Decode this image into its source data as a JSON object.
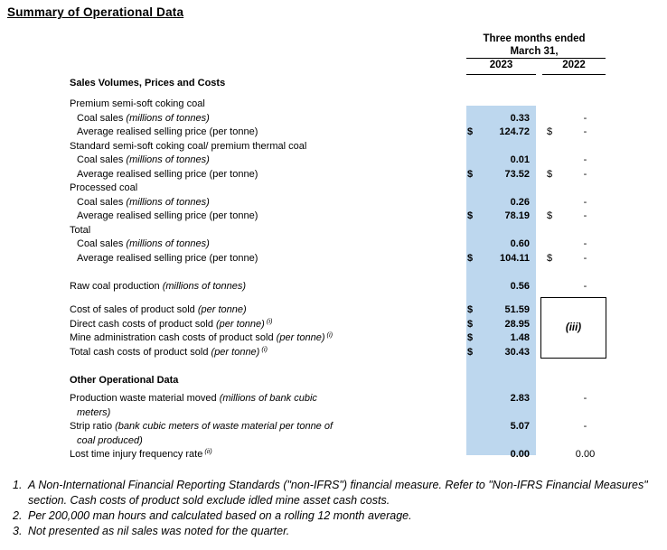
{
  "title": "Summary of Operational Data",
  "table": {
    "header": {
      "period_line1": "Three months ended",
      "period_line2": "March 31,",
      "col_2023": "2023",
      "col_2022": "2022"
    },
    "box_note": "(iii)",
    "rows": [
      {
        "type": "section",
        "label": "Sales Volumes, Prices and Costs"
      },
      {
        "type": "group",
        "label": "Premium semi-soft coking coal"
      },
      {
        "type": "item",
        "indent": true,
        "label": "Coal sales ",
        "em": "(millions of tonnes)",
        "v23": "0.33",
        "v22": "-"
      },
      {
        "type": "item",
        "indent": true,
        "label": "Average realised selling price (per tonne)",
        "d23": "$",
        "v23": "124.72",
        "d22": "$",
        "v22": "-"
      },
      {
        "type": "group",
        "label": "Standard semi-soft coking coal/ premium thermal coal"
      },
      {
        "type": "item",
        "indent": true,
        "label": "Coal sales ",
        "em": "(millions of tonnes)",
        "v23": "0.01",
        "v22": "-"
      },
      {
        "type": "item",
        "indent": true,
        "label": "Average realised selling price (per tonne)",
        "d23": "$",
        "v23": "73.52",
        "d22": "$",
        "v22": "-"
      },
      {
        "type": "group",
        "label": "Processed coal"
      },
      {
        "type": "item",
        "indent": true,
        "label": "Coal sales ",
        "em": "(millions of tonnes)",
        "v23": "0.26",
        "v22": "-"
      },
      {
        "type": "item",
        "indent": true,
        "label": "Average realised selling price (per tonne)",
        "d23": "$",
        "v23": "78.19",
        "d22": "$",
        "v22": "-"
      },
      {
        "type": "group",
        "label": "Total"
      },
      {
        "type": "item",
        "indent": true,
        "label": "Coal sales ",
        "em": "(millions of tonnes)",
        "v23": "0.60",
        "v22": "-"
      },
      {
        "type": "item",
        "indent": true,
        "label": "Average realised selling price (per tonne)",
        "d23": "$",
        "v23": "104.11",
        "d22": "$",
        "v22": "-"
      },
      {
        "type": "blank"
      },
      {
        "type": "item",
        "label": "Raw coal production ",
        "em": "(millions of tonnes)",
        "v23": "0.56",
        "v22": "-"
      },
      {
        "type": "blank-sm"
      },
      {
        "type": "item",
        "label": "Cost of sales of product sold ",
        "em": "(per tonne)",
        "d23": "$",
        "v23": "51.59"
      },
      {
        "type": "item",
        "label": "Direct cash costs of product sold ",
        "em": "(per tonne)",
        "sup": "(i)",
        "d23": "$",
        "v23": "28.95"
      },
      {
        "type": "item",
        "label": "Mine administration cash costs of product sold ",
        "em": "(per tonne)",
        "sup": "(i)",
        "d23": "$",
        "v23": "1.48"
      },
      {
        "type": "item",
        "label": "Total cash costs of product sold ",
        "em": "(per tonne)",
        "sup": "(i)",
        "d23": "$",
        "v23": "30.43"
      },
      {
        "type": "blank-md"
      },
      {
        "type": "section2",
        "label": "Other Operational Data"
      },
      {
        "type": "item",
        "wrap": true,
        "label": "Production waste material moved ",
        "em": "(millions of bank cubic meters)",
        "v23": "2.83",
        "v22": "-"
      },
      {
        "type": "item",
        "wrap": true,
        "label": "Strip ratio ",
        "em": "(bank cubic meters of waste material per tonne of coal produced)",
        "v23": "5.07",
        "v22": "-"
      },
      {
        "type": "item",
        "label": "Lost time injury frequency rate",
        "sup": "(ii)",
        "v23": "0.00",
        "v22": "0.00"
      }
    ]
  },
  "footnotes": [
    {
      "num": "1.",
      "text": "A Non-International Financial Reporting Standards (\"non-IFRS\") financial measure. Refer to \"Non-IFRS Financial Measures\" section. Cash costs of product sold exclude idled mine asset cash costs."
    },
    {
      "num": "2.",
      "text": "Per 200,000 man hours and calculated based on a rolling 12 month average."
    },
    {
      "num": "3.",
      "text": "Not presented as nil sales was noted for the quarter."
    }
  ],
  "colors": {
    "highlight_2023": "#BDD7EE",
    "text": "#000000",
    "rule": "#000000"
  }
}
